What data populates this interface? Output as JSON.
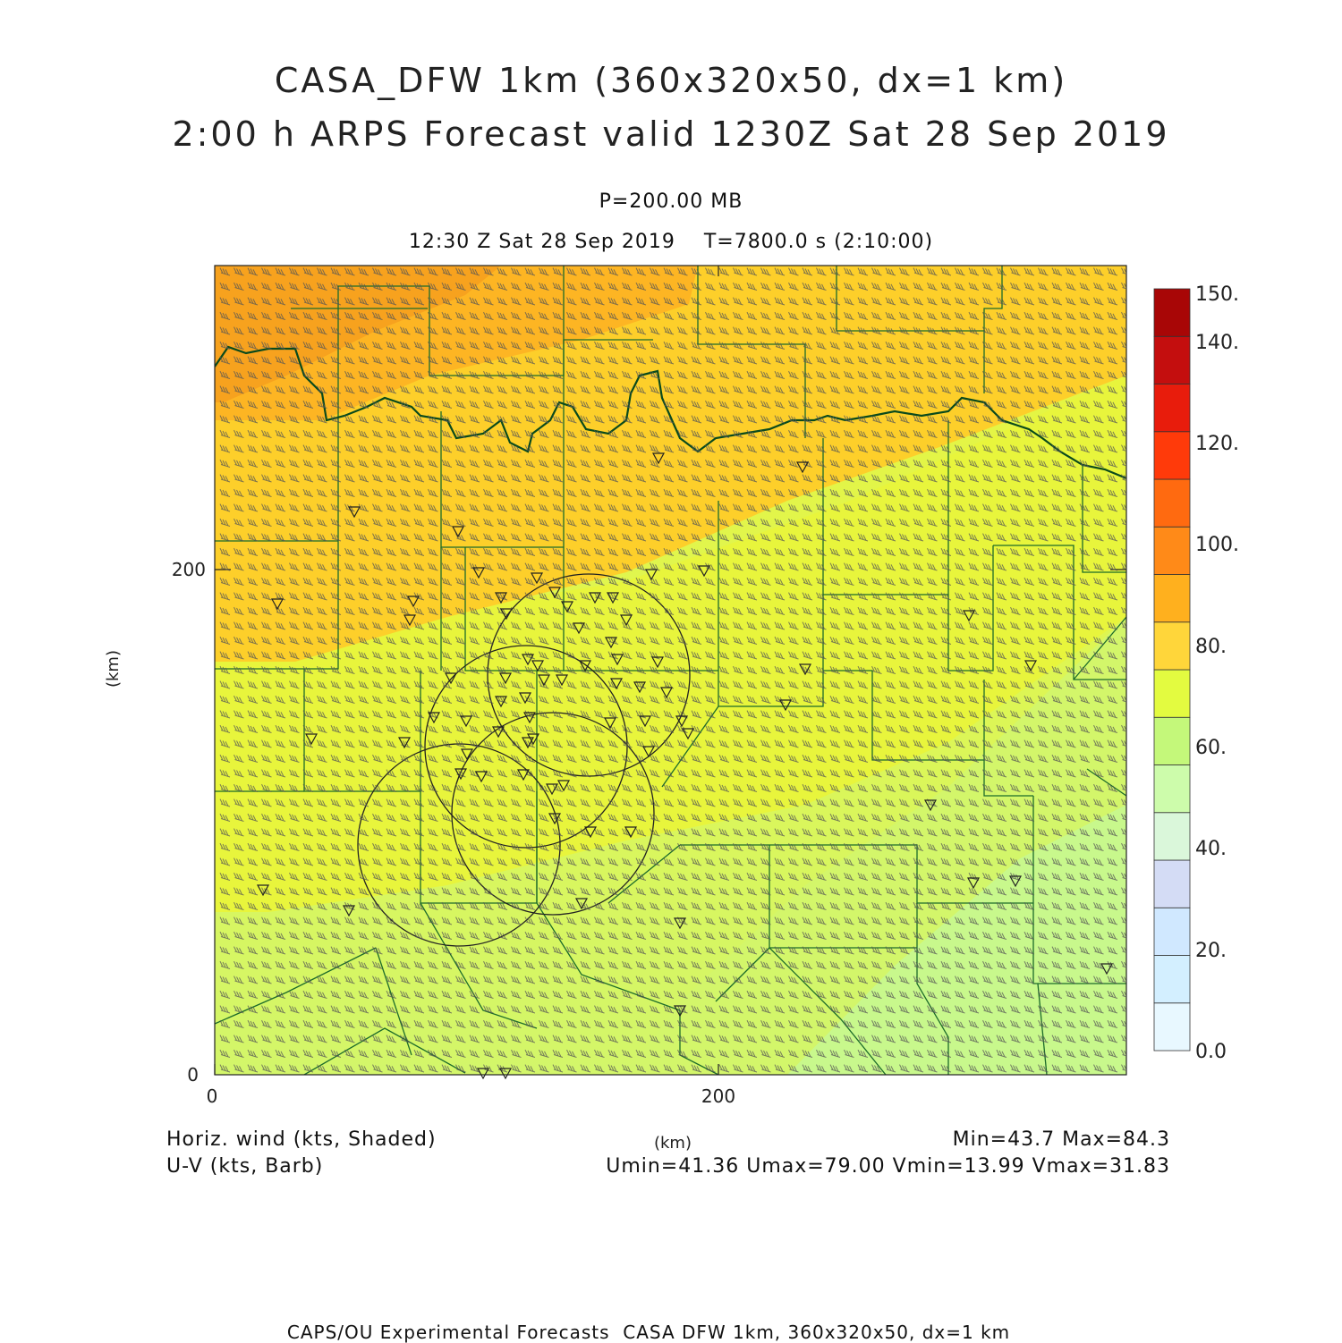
{
  "header": {
    "title_line1": "CASA_DFW 1km (360x320x50, dx=1 km)",
    "title_line2": "2:00 h ARPS Forecast valid 1230Z Sat 28 Sep 2019",
    "pressure": "P=200.00 MB",
    "time_line": "12:30 Z Sat 28 Sep 2019    T=7800.0 s (2:10:00)"
  },
  "axes": {
    "x_ticks": [
      "0",
      "200"
    ],
    "y_ticks": [
      "0",
      "200"
    ],
    "x_label": "(km)",
    "y_label": "(km)"
  },
  "colorbar": {
    "labels": [
      "0.0",
      "20.",
      "40.",
      "60.",
      "80.",
      "100.",
      "120.",
      "140.",
      "150."
    ],
    "colors": [
      "#e8f8ff",
      "#d3efff",
      "#d0e8ff",
      "#d4dcf5",
      "#daf7da",
      "#cdfcab",
      "#c4f87a",
      "#e3fb40",
      "#ffd63a",
      "#ffb01e",
      "#ff8a18",
      "#ff6a10",
      "#ff3a0a",
      "#e81c0c",
      "#c40e0e",
      "#a80606"
    ]
  },
  "footer": {
    "left_line1": "Horiz. wind (kts, Shaded)",
    "left_line2": "U-V (kts, Barb)",
    "center": "(km)",
    "right_line1": "Min=43.7 Max=84.3",
    "right_line2": "Umin=41.36 Umax=79.00 Vmin=13.99 Vmax=31.83",
    "credit": "CAPS/OU Experimental Forecasts  CASA DFW 1km, 360x320x50, dx=1 km"
  },
  "map_colors": {
    "orange_dark": "#f7a21e",
    "orange": "#fdb523",
    "yellow_orange": "#fdcf2a",
    "yellow": "#e8f53c",
    "lime": "#d3f66a",
    "light_green": "#c8f88c",
    "county_lines": "#1c6b2a",
    "river": "#0a4a1c",
    "barbs": "#444444"
  }
}
